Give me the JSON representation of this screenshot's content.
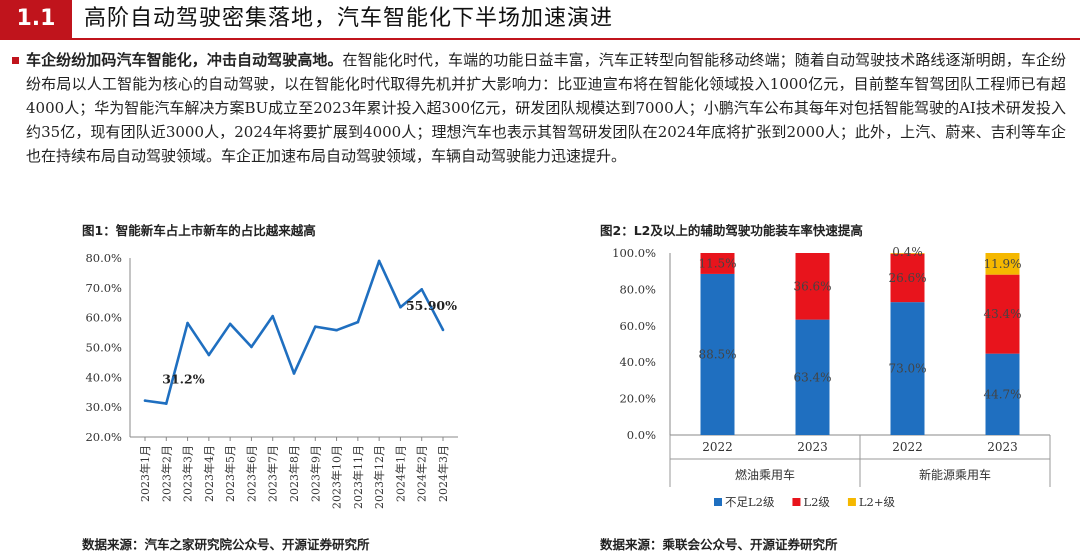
{
  "header": {
    "section_number": "1.1",
    "title": "高阶自动驾驶密集落地，汽车智能化下半场加速演进",
    "accent_color": "#c0141c"
  },
  "paragraph": {
    "lead": "车企纷纷加码汽车智能化，冲击自动驾驶高地。",
    "body": "在智能化时代，车端的功能日益丰富，汽车正转型向智能移动终端；随着自动驾驶技术路线逐渐明朗，车企纷纷布局以人工智能为核心的自动驾驶，以在智能化时代取得先机并扩大影响力：比亚迪宣布将在智能化领域投入1000亿元，目前整车智驾团队工程师已有超4000人；华为智能汽车解决方案BU成立至2023年累计投入超300亿元，研发团队规模达到7000人；小鹏汽车公布其每年对包括智能驾驶的AI技术研发投入约35亿，现有团队近3000人，2024年将要扩展到4000人；理想汽车也表示其智驾研发团队在2024年底将扩张到2000人；此外，上汽、蔚来、吉利等车企也在持续布局自动驾驶领域。车企正加速布局自动驾驶领域，车辆自动驾驶能力迅速提升。"
  },
  "figure1": {
    "title": "图1：智能新车占上市新车的占比越来越高",
    "source": "数据来源：汽车之家研究院公众号、开源证券研究所"
  },
  "figure2": {
    "title": "图2：L2及以上的辅助驾驶功能装车率快速提高",
    "source": "数据来源：乘联会公众号、开源证券研究所"
  },
  "chart_data": [
    {
      "type": "line",
      "x": [
        "2023年1月",
        "2023年2月",
        "2023年3月",
        "2023年4月",
        "2023年5月",
        "2023年6月",
        "2023年7月",
        "2023年8月",
        "2023年9月",
        "2023年10月",
        "2023年11月",
        "2023年12月",
        "2024年1月",
        "2024年2月",
        "2024年3月"
      ],
      "series": [
        {
          "values": [
            32.2,
            31.2,
            58.2,
            47.5,
            57.9,
            50.2,
            60.5,
            41.3,
            57.0,
            55.8,
            58.5,
            79.0,
            63.5,
            69.5,
            55.9
          ],
          "color": "#1f6fc0"
        }
      ],
      "annotations": [
        {
          "index": 1,
          "text": "31.2%"
        },
        {
          "index": 14,
          "text": "55.90%"
        }
      ],
      "ytick_labels": [
        "20.0%",
        "30.0%",
        "40.0%",
        "50.0%",
        "60.0%",
        "70.0%",
        "80.0%"
      ],
      "ylim": [
        20,
        80
      ],
      "grid": false,
      "title": "",
      "xlabel": "",
      "ylabel": ""
    },
    {
      "type": "bar",
      "stacked": true,
      "categories": [
        "2022",
        "2023",
        "2022",
        "2023"
      ],
      "groups": [
        {
          "label": "燃油乘用车",
          "span": [
            0,
            1
          ]
        },
        {
          "label": "新能源乘用车",
          "span": [
            2,
            3
          ]
        }
      ],
      "series": [
        {
          "name": "不足L2级",
          "values": [
            88.5,
            63.4,
            73.0,
            44.7
          ],
          "labels": [
            "88.5%",
            "63.4%",
            "73.0%",
            "44.7%"
          ],
          "color": "#1f6fc0"
        },
        {
          "name": "L2级",
          "values": [
            11.5,
            36.6,
            26.6,
            43.4
          ],
          "labels": [
            "11.5%",
            "36.6%",
            "26.6%",
            "43.4%"
          ],
          "color": "#e8141c"
        },
        {
          "name": "L2+级",
          "values": [
            0,
            0,
            0.4,
            11.9
          ],
          "labels": [
            "",
            "",
            "0.4%",
            "11.9%"
          ],
          "color": "#f5b800"
        }
      ],
      "ytick_labels": [
        "0.0%",
        "20.0%",
        "40.0%",
        "60.0%",
        "80.0%",
        "100.0%"
      ],
      "ylim": [
        0,
        100
      ],
      "legend": "bottom",
      "grid": false,
      "title": "",
      "xlabel": "",
      "ylabel": ""
    }
  ]
}
